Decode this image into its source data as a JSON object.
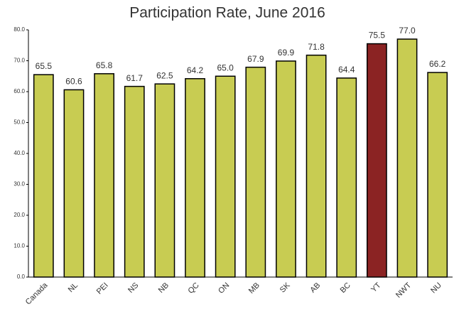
{
  "chart_data": {
    "type": "bar",
    "title": "Participation Rate, June 2016",
    "categories": [
      "Canada",
      "NL",
      "PEI",
      "NS",
      "NB",
      "QC",
      "ON",
      "MB",
      "SK",
      "AB",
      "BC",
      "YT",
      "NWT",
      "NU"
    ],
    "values": [
      65.5,
      60.6,
      65.8,
      61.7,
      62.5,
      64.2,
      65.0,
      67.9,
      69.9,
      71.8,
      64.4,
      75.5,
      77.0,
      66.2
    ],
    "value_labels": [
      "65.5",
      "60.6",
      "65.8",
      "61.7",
      "62.5",
      "64.2",
      "65.0",
      "67.9",
      "69.9",
      "71.8",
      "64.4",
      "75.5",
      "77.0",
      "66.2"
    ],
    "colors": [
      "#c8cc52",
      "#c8cc52",
      "#c8cc52",
      "#c8cc52",
      "#c8cc52",
      "#c8cc52",
      "#c8cc52",
      "#c8cc52",
      "#c8cc52",
      "#c8cc52",
      "#c8cc52",
      "#8b2323",
      "#c8cc52",
      "#c8cc52"
    ],
    "ylim": [
      0,
      80
    ],
    "yticks": [
      {
        "value": 0,
        "label": "0.0"
      },
      {
        "value": 10,
        "label": "10.0"
      },
      {
        "value": 20,
        "label": "20.0"
      },
      {
        "value": 30,
        "label": "30.0"
      },
      {
        "value": 40,
        "label": "40.0"
      },
      {
        "value": 50,
        "label": "50.0"
      },
      {
        "value": 60,
        "label": "60.0"
      },
      {
        "value": 70,
        "label": "70.0"
      },
      {
        "value": 80,
        "label": "80.0"
      }
    ],
    "grid": false
  }
}
